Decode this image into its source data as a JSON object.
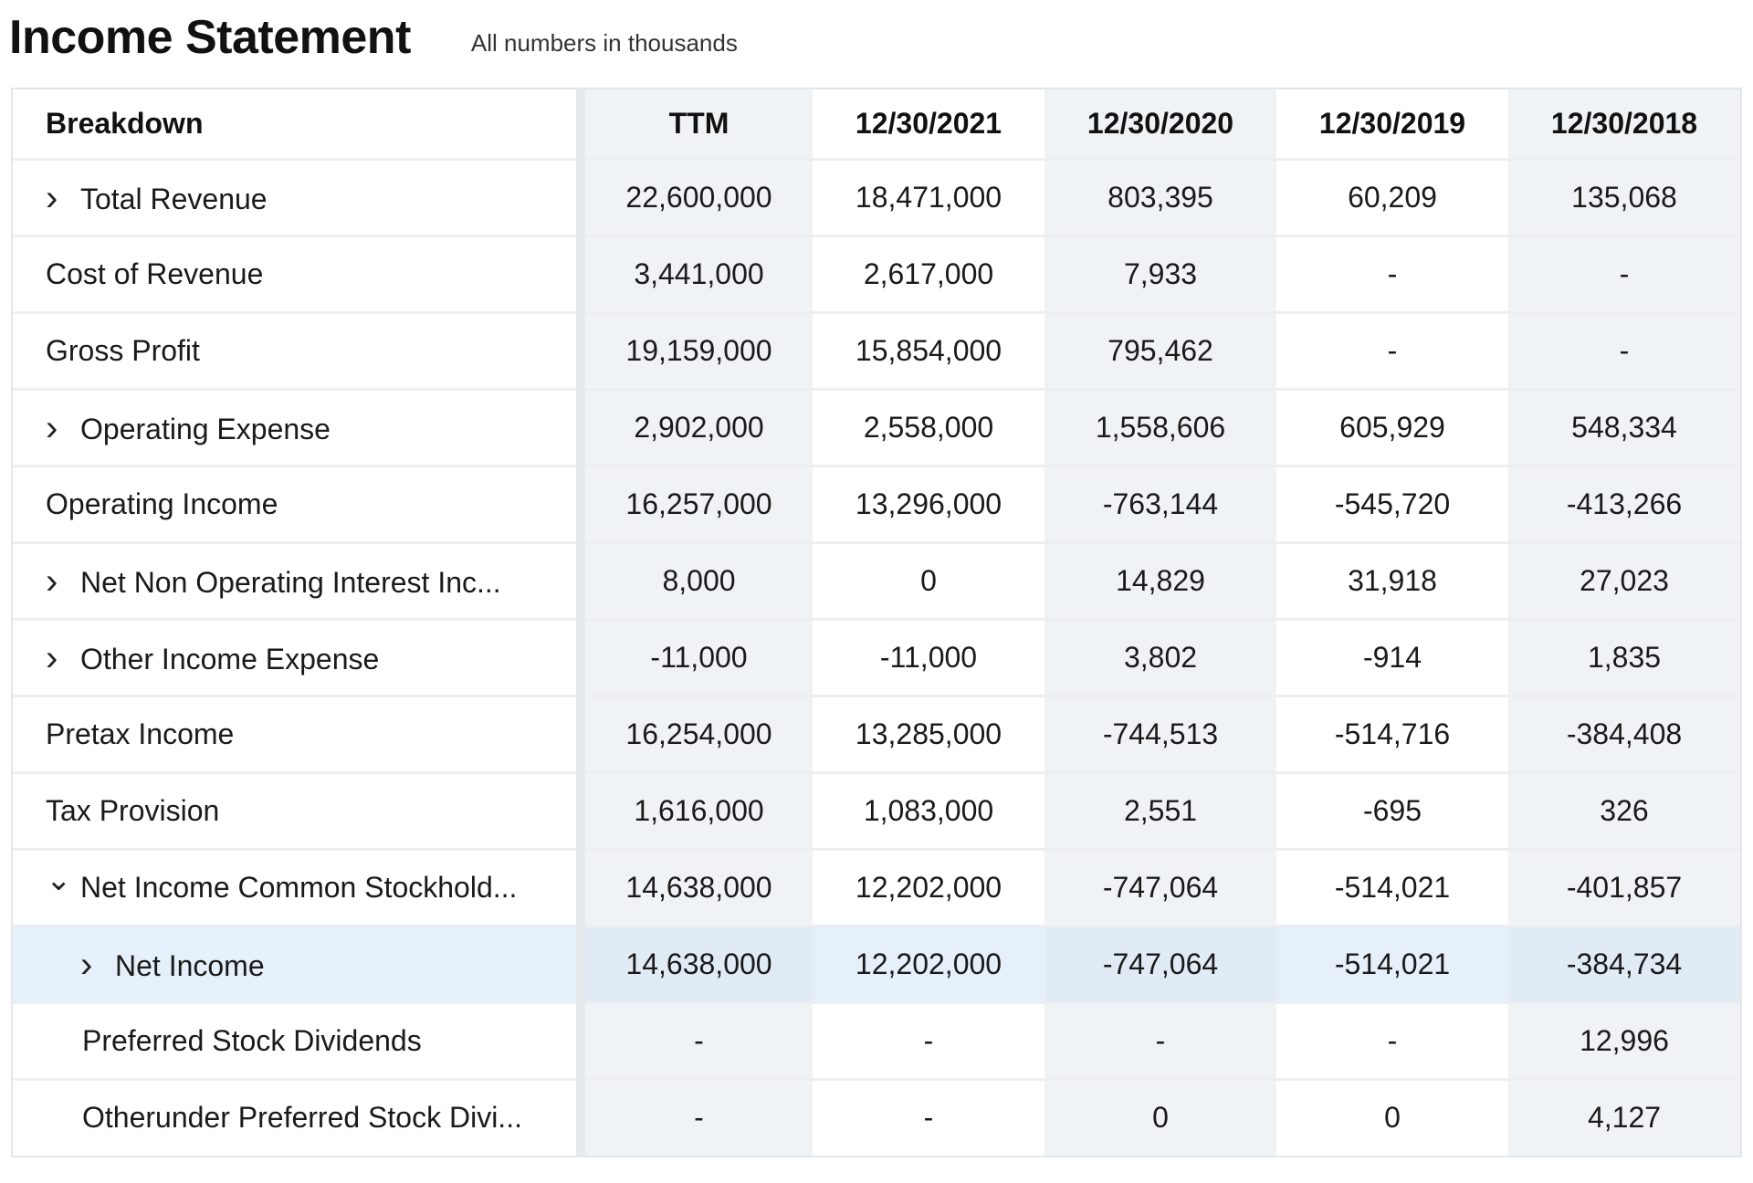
{
  "header": {
    "title": "Income Statement",
    "subtitle": "All numbers in thousands"
  },
  "table": {
    "columns": [
      "Breakdown",
      "TTM",
      "12/30/2021",
      "12/30/2020",
      "12/30/2019",
      "12/30/2018"
    ],
    "rows": [
      {
        "label": "Total Revenue",
        "expander": "collapsed",
        "values": [
          "22,600,000",
          "18,471,000",
          "803,395",
          "60,209",
          "135,068"
        ]
      },
      {
        "label": "Cost of Revenue",
        "expander": "none",
        "values": [
          "3,441,000",
          "2,617,000",
          "7,933",
          "-",
          "-"
        ]
      },
      {
        "label": "Gross Profit",
        "expander": "none",
        "values": [
          "19,159,000",
          "15,854,000",
          "795,462",
          "-",
          "-"
        ]
      },
      {
        "label": "Operating Expense",
        "expander": "collapsed",
        "values": [
          "2,902,000",
          "2,558,000",
          "1,558,606",
          "605,929",
          "548,334"
        ]
      },
      {
        "label": "Operating Income",
        "expander": "none",
        "values": [
          "16,257,000",
          "13,296,000",
          "-763,144",
          "-545,720",
          "-413,266"
        ]
      },
      {
        "label": "Net Non Operating Interest Inc...",
        "expander": "collapsed",
        "values": [
          "8,000",
          "0",
          "14,829",
          "31,918",
          "27,023"
        ]
      },
      {
        "label": "Other Income Expense",
        "expander": "collapsed",
        "values": [
          "-11,000",
          "-11,000",
          "3,802",
          "-914",
          "1,835"
        ]
      },
      {
        "label": "Pretax Income",
        "expander": "none",
        "values": [
          "16,254,000",
          "13,285,000",
          "-744,513",
          "-514,716",
          "-384,408"
        ]
      },
      {
        "label": "Tax Provision",
        "expander": "none",
        "values": [
          "1,616,000",
          "1,083,000",
          "2,551",
          "-695",
          "326"
        ]
      },
      {
        "label": "Net Income Common Stockhold...",
        "expander": "expanded",
        "values": [
          "14,638,000",
          "12,202,000",
          "-747,064",
          "-514,021",
          "-401,857"
        ]
      },
      {
        "label": "Net Income",
        "expander": "collapsed",
        "child": true,
        "selected": true,
        "values": [
          "14,638,000",
          "12,202,000",
          "-747,064",
          "-514,021",
          "-384,734"
        ]
      },
      {
        "label": "Preferred Stock Dividends",
        "expander": "none",
        "child": true,
        "values": [
          "-",
          "-",
          "-",
          "-",
          "12,996"
        ]
      },
      {
        "label": "Otherunder Preferred Stock Divi...",
        "expander": "none",
        "child": true,
        "values": [
          "-",
          "-",
          "0",
          "0",
          "4,127"
        ]
      }
    ]
  },
  "colors": {
    "shade": "#f0f3f6",
    "selected": "#e6f0fa",
    "divider": "#eceef1"
  }
}
